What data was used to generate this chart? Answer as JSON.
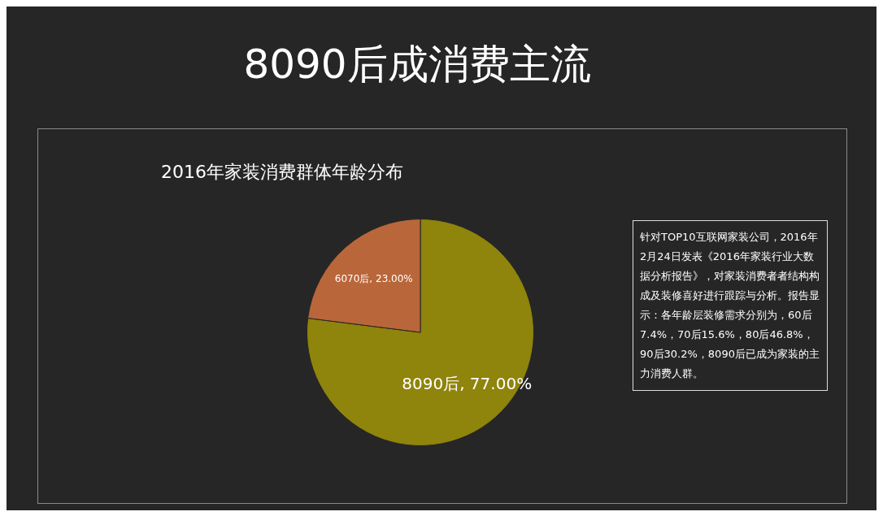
{
  "chart_data": {
    "type": "pie",
    "title": "8090后成消费主流",
    "subtitle": "2016年家装消费群体年龄分布",
    "categories": [
      "8090后",
      "6070后"
    ],
    "values": [
      77,
      23
    ],
    "colors": [
      "#8f840c",
      "#b9663a"
    ],
    "value_labels": [
      "77.00%",
      "23.00%"
    ],
    "legend": false,
    "annotations": [
      "针对TOP10互联网家装公司，2016年2月24日发表《2016年家装行业大数据分析报告》，对家装消费者者结构构成及装修喜好进行跟踪与分析。报告显示：各年龄层装修需求分别为，60后7.4%，70后15.6%，80后46.8%，90后30.2%，8090后已成为家装的主力消费人群。"
    ]
  }
}
